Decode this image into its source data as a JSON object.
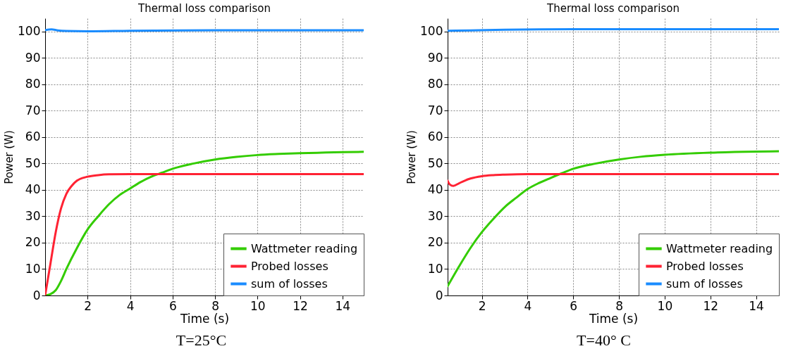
{
  "chart_data": [
    {
      "type": "line",
      "title": "Thermal loss comparison",
      "xlabel": "Time (s)",
      "ylabel": "Power (W)",
      "annotations": [
        "T=25°C"
      ],
      "xlim": [
        0,
        15
      ],
      "ylim": [
        0,
        105
      ],
      "xticks": [
        2,
        4,
        6,
        8,
        10,
        12,
        14
      ],
      "yticks": [
        0,
        10,
        20,
        30,
        40,
        50,
        60,
        70,
        80,
        90,
        100
      ],
      "grid": true,
      "legend": "bottom right",
      "series": [
        {
          "name": "Wattmeter reading",
          "color": "#33cc00",
          "x": [
            0,
            0.25,
            0.5,
            0.75,
            1,
            1.5,
            2,
            2.5,
            3,
            3.5,
            4,
            4.5,
            5,
            5.5,
            6,
            7,
            8,
            9,
            10,
            11,
            12,
            13,
            14,
            15
          ],
          "values": [
            0,
            0.5,
            2,
            5.5,
            10,
            18,
            25,
            30,
            34.5,
            38,
            40.5,
            43,
            45,
            46.5,
            48,
            50,
            51.5,
            52.5,
            53.2,
            53.6,
            53.9,
            54.1,
            54.3,
            54.4
          ]
        },
        {
          "name": "Probed losses",
          "color": "#ff2233",
          "x": [
            0,
            0.25,
            0.5,
            0.75,
            1,
            1.25,
            1.5,
            2,
            2.5,
            3,
            4,
            6,
            10,
            15
          ],
          "values": [
            0,
            12,
            24,
            33,
            38.5,
            41.5,
            43.5,
            45,
            45.6,
            45.9,
            46,
            46,
            46,
            46
          ]
        },
        {
          "name": "sum of losses",
          "color": "#1a8cff",
          "x": [
            0,
            0.3,
            0.6,
            1,
            2,
            4,
            8,
            15
          ],
          "values": [
            100.5,
            100.8,
            100.4,
            100.2,
            100.1,
            100.3,
            100.5,
            100.5
          ]
        }
      ]
    },
    {
      "type": "line",
      "title": "Thermal loss comparison",
      "xlabel": "Time (s)",
      "ylabel": "Power (W)",
      "annotations": [
        "T=40° C"
      ],
      "xlim": [
        0.5,
        15
      ],
      "ylim": [
        0,
        105
      ],
      "xticks": [
        2,
        4,
        6,
        8,
        10,
        12,
        14
      ],
      "yticks": [
        0,
        10,
        20,
        30,
        40,
        50,
        60,
        70,
        80,
        90,
        100
      ],
      "grid": true,
      "legend": "bottom right",
      "series": [
        {
          "name": "Wattmeter reading",
          "color": "#33cc00",
          "x": [
            0.5,
            1,
            1.5,
            2,
            2.5,
            3,
            3.5,
            4,
            4.5,
            5,
            5.5,
            6,
            7,
            8,
            9,
            10,
            12,
            14,
            15
          ],
          "values": [
            3.5,
            11,
            18,
            24,
            29,
            33.5,
            37,
            40.3,
            42.6,
            44.5,
            46.3,
            48,
            50,
            51.5,
            52.6,
            53.3,
            54.1,
            54.5,
            54.6
          ]
        },
        {
          "name": "Probed losses",
          "color": "#ff2233",
          "x": [
            0.5,
            0.6,
            0.75,
            1,
            1.25,
            1.5,
            2,
            2.5,
            3,
            4,
            6,
            10,
            15
          ],
          "values": [
            43.5,
            42,
            41.5,
            42.5,
            43.5,
            44.3,
            45.2,
            45.6,
            45.8,
            46,
            46,
            46,
            46
          ]
        },
        {
          "name": "sum of losses",
          "color": "#1a8cff",
          "x": [
            0.5,
            1.5,
            3,
            6,
            10,
            15
          ],
          "values": [
            100.3,
            100.4,
            100.7,
            100.9,
            100.9,
            100.9
          ]
        }
      ]
    }
  ]
}
